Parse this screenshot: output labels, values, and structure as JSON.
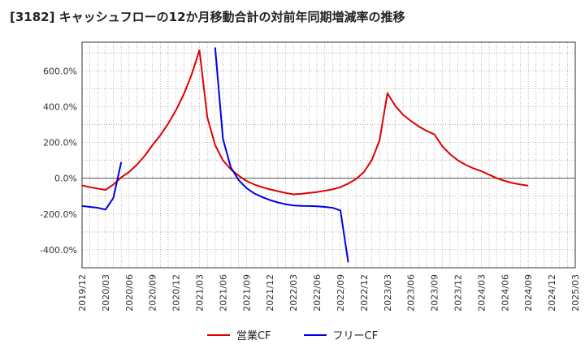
{
  "chart_data": {
    "type": "line",
    "title": "[3182]  キャッシュフローの12か月移動合計の対前年同期増減率の推移",
    "xlabel": "",
    "ylabel": "",
    "ylim": [
      -500,
      760
    ],
    "yticks": [
      600,
      400,
      200,
      0,
      -200,
      -400
    ],
    "ytick_labels": [
      "600.0%",
      "400.0%",
      "200.0%",
      "0.0%",
      "-200.0%",
      "-400.0%"
    ],
    "xlim": [
      "2019/12",
      "2025/03"
    ],
    "xtick_labels": [
      "2019/12",
      "2020/03",
      "2020/06",
      "2020/09",
      "2020/12",
      "2021/03",
      "2021/06",
      "2021/09",
      "2021/12",
      "2022/03",
      "2022/06",
      "2022/09",
      "2022/12",
      "2023/03",
      "2023/06",
      "2023/09",
      "2023/12",
      "2024/03",
      "2024/06",
      "2024/09",
      "2024/12",
      "2025/03"
    ],
    "grid": true,
    "legend_position": "bottom",
    "series": [
      {
        "name": "営業CF",
        "color": "#e00000",
        "x": [
          "2019/12",
          "2020/01",
          "2020/02",
          "2020/03",
          "2020/04",
          "2020/05",
          "2020/06",
          "2020/07",
          "2020/08",
          "2020/09",
          "2020/10",
          "2020/11",
          "2020/12",
          "2021/01",
          "2021/02",
          "2021/03",
          "2021/04",
          "2021/05",
          "2021/06",
          "2021/07",
          "2021/08",
          "2021/09",
          "2021/10",
          "2021/11",
          "2021/12",
          "2022/01",
          "2022/02",
          "2022/03",
          "2022/04",
          "2022/05",
          "2022/06",
          "2022/07",
          "2022/08",
          "2022/09",
          "2022/10",
          "2022/11",
          "2022/12",
          "2023/01",
          "2023/02",
          "2023/03",
          "2023/04",
          "2023/05",
          "2023/06",
          "2023/07",
          "2023/08",
          "2023/09",
          "2023/10",
          "2023/11",
          "2023/12",
          "2024/01",
          "2024/02",
          "2024/03",
          "2024/04",
          "2024/05",
          "2024/06",
          "2024/07",
          "2024/08",
          "2024/09"
        ],
        "values": [
          -40,
          -50,
          -58,
          -65,
          -35,
          5,
          35,
          75,
          125,
          185,
          240,
          305,
          380,
          470,
          580,
          715,
          340,
          185,
          100,
          50,
          15,
          -15,
          -35,
          -50,
          -62,
          -72,
          -82,
          -90,
          -87,
          -82,
          -77,
          -70,
          -62,
          -50,
          -30,
          -5,
          35,
          100,
          210,
          475,
          405,
          355,
          320,
          290,
          265,
          245,
          180,
          135,
          100,
          75,
          55,
          40,
          20,
          0,
          -15,
          -27,
          -35,
          -42
        ]
      },
      {
        "name": "フリーCF",
        "color": "#0000dd",
        "x": [
          "2019/12",
          "2020/01",
          "2020/02",
          "2020/03",
          "2020/04",
          "2020/05"
        ],
        "values": [
          -155,
          -160,
          -165,
          -175,
          -110,
          90
        ]
      },
      {
        "name": "フリーCF",
        "color": "#0000dd",
        "legend": false,
        "x": [
          "2021/05",
          "2021/06",
          "2021/07",
          "2021/08",
          "2021/09",
          "2021/10",
          "2021/11",
          "2021/12",
          "2022/01",
          "2022/02",
          "2022/03",
          "2022/04",
          "2022/05",
          "2022/06",
          "2022/07",
          "2022/08",
          "2022/09",
          "2022/10"
        ],
        "values": [
          730,
          220,
          60,
          -10,
          -55,
          -85,
          -105,
          -122,
          -135,
          -145,
          -152,
          -154,
          -155,
          -157,
          -160,
          -165,
          -180,
          -470
        ]
      }
    ]
  },
  "legend": {
    "items": [
      {
        "label": "営業CF",
        "color": "#e00000"
      },
      {
        "label": "フリーCF",
        "color": "#0000dd"
      }
    ]
  }
}
